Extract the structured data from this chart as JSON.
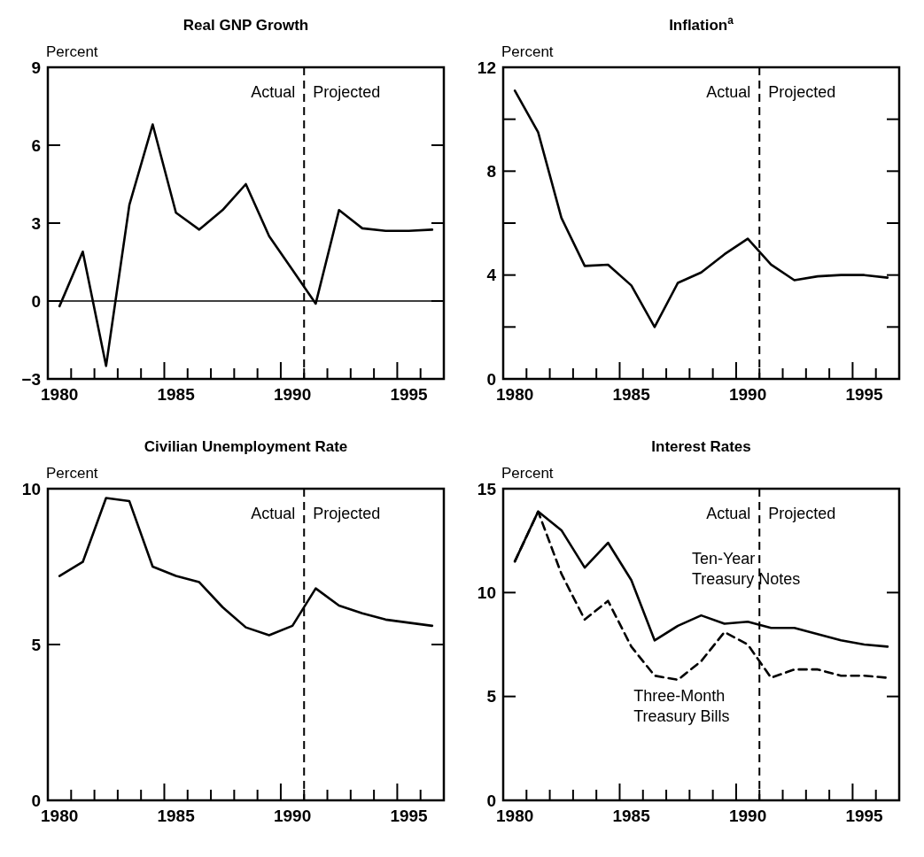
{
  "chart_data": [
    {
      "type": "line",
      "title": "Real GNP Growth",
      "ylabel": "Percent",
      "x": [
        1980,
        1981,
        1982,
        1983,
        1984,
        1985,
        1986,
        1987,
        1988,
        1989,
        1990,
        1991,
        1992,
        1993,
        1994,
        1995,
        1996
      ],
      "series": [
        {
          "color": "#000000",
          "line_style": "solid",
          "values": [
            -0.2,
            1.9,
            -2.5,
            3.7,
            6.8,
            3.4,
            2.75,
            3.5,
            4.5,
            2.5,
            1.2,
            -0.1,
            3.5,
            2.8,
            2.7,
            2.7,
            2.75
          ]
        }
      ],
      "xlim": [
        1979.5,
        1996.5
      ],
      "ylim": [
        -3,
        9
      ],
      "yticks": [
        -3,
        0,
        3,
        6,
        9
      ],
      "xticks": [
        1980,
        1985,
        1990,
        1995,
        {
          "value": 1980.5,
          "label": null
        },
        {
          "value": 1981.5,
          "label": null
        },
        {
          "value": 1982.5,
          "label": null
        },
        {
          "value": 1983.5,
          "label": null
        },
        {
          "value": 1984.5,
          "label": null
        },
        {
          "value": 1985.5,
          "label": null
        },
        {
          "value": 1986.5,
          "label": null
        },
        {
          "value": 1987.5,
          "label": null
        },
        {
          "value": 1988.5,
          "label": null
        },
        {
          "value": 1989.5,
          "label": null
        },
        {
          "value": 1990.5,
          "label": null
        },
        {
          "value": 1991.5,
          "label": null
        },
        {
          "value": 1992.5,
          "label": null
        },
        {
          "value": 1993.5,
          "label": null
        },
        {
          "value": 1994.5,
          "label": null
        },
        {
          "value": 1995.5,
          "label": null
        }
      ],
      "ref_lines": [
        {
          "axis": "y",
          "value": 0,
          "line_style": "solid"
        },
        {
          "axis": "x",
          "value": 1990.5,
          "line_style": "dashed"
        }
      ],
      "annotations": [
        "Actual",
        "Projected"
      ]
    },
    {
      "type": "line",
      "title": "Inflation$^{a}$",
      "ylabel": "Percent",
      "x": [
        1980,
        1981,
        1982,
        1983,
        1984,
        1985,
        1986,
        1987,
        1988,
        1989,
        1990,
        1991,
        1992,
        1993,
        1994,
        1995,
        1996
      ],
      "series": [
        {
          "color": "#000000",
          "line_style": "solid",
          "values": [
            11.1,
            9.5,
            6.2,
            4.35,
            4.4,
            3.6,
            2.0,
            3.7,
            4.1,
            4.8,
            5.4,
            4.4,
            3.8,
            3.95,
            4.0,
            4.0,
            3.9
          ]
        }
      ],
      "xlim": [
        1979.5,
        1996.5
      ],
      "ylim": [
        0,
        12
      ],
      "yticks": [
        0,
        {
          "value": 2,
          "label": null
        },
        4,
        {
          "value": 6,
          "label": null
        },
        8,
        {
          "value": 10,
          "label": null
        },
        12
      ],
      "xticks": [
        1980,
        1985,
        1990,
        1995,
        {
          "value": 1980.5,
          "label": null
        },
        {
          "value": 1981.5,
          "label": null
        },
        {
          "value": 1982.5,
          "label": null
        },
        {
          "value": 1983.5,
          "label": null
        },
        {
          "value": 1984.5,
          "label": null
        },
        {
          "value": 1985.5,
          "label": null
        },
        {
          "value": 1986.5,
          "label": null
        },
        {
          "value": 1987.5,
          "label": null
        },
        {
          "value": 1988.5,
          "label": null
        },
        {
          "value": 1989.5,
          "label": null
        },
        {
          "value": 1990.5,
          "label": null
        },
        {
          "value": 1991.5,
          "label": null
        },
        {
          "value": 1992.5,
          "label": null
        },
        {
          "value": 1993.5,
          "label": null
        },
        {
          "value": 1994.5,
          "label": null
        },
        {
          "value": 1995.5,
          "label": null
        }
      ],
      "ref_lines": [
        {
          "axis": "x",
          "value": 1990.5,
          "line_style": "dashed"
        }
      ],
      "annotations": [
        "Actual",
        "Projected"
      ]
    },
    {
      "type": "line",
      "title": "Civilian Unemployment Rate",
      "ylabel": "Percent",
      "x": [
        1980,
        1981,
        1982,
        1983,
        1984,
        1985,
        1986,
        1987,
        1988,
        1989,
        1990,
        1991,
        1992,
        1993,
        1994,
        1995,
        1996
      ],
      "series": [
        {
          "color": "#000000",
          "line_style": "solid",
          "values": [
            7.2,
            7.65,
            9.7,
            9.6,
            7.5,
            7.2,
            7.0,
            6.2,
            5.55,
            5.3,
            5.6,
            6.8,
            6.25,
            6.0,
            5.8,
            5.7,
            5.6
          ]
        }
      ],
      "xlim": [
        1979.5,
        1996.5
      ],
      "ylim": [
        0,
        10
      ],
      "yticks": [
        0,
        5,
        10
      ],
      "xticks": [
        1980,
        1985,
        1990,
        1995,
        {
          "value": 1980.5,
          "label": null
        },
        {
          "value": 1981.5,
          "label": null
        },
        {
          "value": 1982.5,
          "label": null
        },
        {
          "value": 1983.5,
          "label": null
        },
        {
          "value": 1984.5,
          "label": null
        },
        {
          "value": 1985.5,
          "label": null
        },
        {
          "value": 1986.5,
          "label": null
        },
        {
          "value": 1987.5,
          "label": null
        },
        {
          "value": 1988.5,
          "label": null
        },
        {
          "value": 1989.5,
          "label": null
        },
        {
          "value": 1990.5,
          "label": null
        },
        {
          "value": 1991.5,
          "label": null
        },
        {
          "value": 1992.5,
          "label": null
        },
        {
          "value": 1993.5,
          "label": null
        },
        {
          "value": 1994.5,
          "label": null
        },
        {
          "value": 1995.5,
          "label": null
        }
      ],
      "ref_lines": [
        {
          "axis": "x",
          "value": 1990.5,
          "line_style": "dashed"
        }
      ],
      "annotations": [
        "Actual",
        "Projected"
      ]
    },
    {
      "type": "line",
      "title": "Interest Rates",
      "ylabel": "Percent",
      "x": [
        1980,
        1981,
        1982,
        1983,
        1984,
        1985,
        1986,
        1987,
        1988,
        1989,
        1990,
        1991,
        1992,
        1993,
        1994,
        1995,
        1996
      ],
      "series": [
        {
          "name": "Ten-Year Treasury Notes",
          "color": "#000000",
          "line_style": "solid",
          "values": [
            11.5,
            13.9,
            13.0,
            11.2,
            12.4,
            10.6,
            7.7,
            8.4,
            8.9,
            8.5,
            8.6,
            8.3,
            8.3,
            8.0,
            7.7,
            7.5,
            7.4
          ]
        },
        {
          "name": "Three-Month Treasury Bills",
          "color": "#000000",
          "line_style": "dashed",
          "values": [
            11.5,
            13.9,
            10.9,
            8.7,
            9.6,
            7.4,
            6.0,
            5.8,
            6.7,
            8.1,
            7.5,
            5.9,
            6.3,
            6.3,
            6.0,
            6.0,
            5.9
          ]
        }
      ],
      "xlim": [
        1979.5,
        1996.5
      ],
      "ylim": [
        0,
        15
      ],
      "yticks": [
        0,
        5,
        10,
        15
      ],
      "xticks": [
        1980,
        1985,
        1990,
        1995,
        {
          "value": 1980.5,
          "label": null
        },
        {
          "value": 1981.5,
          "label": null
        },
        {
          "value": 1982.5,
          "label": null
        },
        {
          "value": 1983.5,
          "label": null
        },
        {
          "value": 1984.5,
          "label": null
        },
        {
          "value": 1985.5,
          "label": null
        },
        {
          "value": 1986.5,
          "label": null
        },
        {
          "value": 1987.5,
          "label": null
        },
        {
          "value": 1988.5,
          "label": null
        },
        {
          "value": 1989.5,
          "label": null
        },
        {
          "value": 1990.5,
          "label": null
        },
        {
          "value": 1991.5,
          "label": null
        },
        {
          "value": 1992.5,
          "label": null
        },
        {
          "value": 1993.5,
          "label": null
        },
        {
          "value": 1994.5,
          "label": null
        },
        {
          "value": 1995.5,
          "label": null
        }
      ],
      "ref_lines": [
        {
          "axis": "x",
          "value": 1990.5,
          "line_style": "dashed"
        }
      ],
      "annotations": [
        "Actual",
        "Projected"
      ]
    }
  ]
}
